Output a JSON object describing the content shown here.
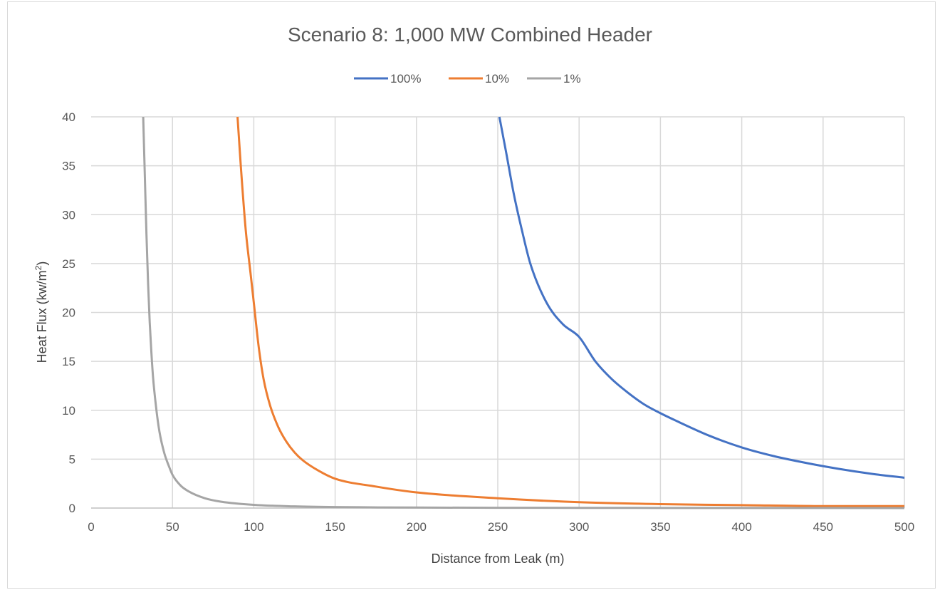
{
  "chart_data": {
    "type": "line",
    "title": "Scenario 8: 1,000 MW Combined Header",
    "xlabel": "Distance from Leak (m)",
    "ylabel": "Heat Flux (kw/m",
    "ylabel_sup": "2",
    "ylabel_end": ")",
    "xlim": [
      0,
      500
    ],
    "ylim": [
      0,
      40
    ],
    "x_ticks": [
      "0",
      "50",
      "100",
      "150",
      "200",
      "250",
      "300",
      "350",
      "400",
      "450",
      "500"
    ],
    "y_ticks": [
      "0",
      "5",
      "10",
      "15",
      "20",
      "25",
      "30",
      "35",
      "40"
    ],
    "grid": true,
    "legend_position": "top",
    "series": [
      {
        "name": "100%",
        "color": "#4472c4",
        "x": [
          251,
          255,
          260,
          265,
          270,
          280,
          290,
          300,
          310,
          320,
          330,
          340,
          350,
          360,
          380,
          400,
          420,
          440,
          460,
          480,
          500
        ],
        "y": [
          40,
          36.5,
          32,
          28.3,
          25,
          21,
          18.8,
          17.5,
          15,
          13.2,
          11.8,
          10.6,
          9.7,
          8.9,
          7.4,
          6.2,
          5.3,
          4.6,
          4.0,
          3.5,
          3.1
        ]
      },
      {
        "name": "10%",
        "color": "#ed7d31",
        "x": [
          90,
          92,
          95,
          98,
          100,
          103,
          106,
          110,
          115,
          120,
          125,
          130,
          140,
          150,
          175,
          200,
          250,
          300,
          350,
          400,
          450,
          500
        ],
        "y": [
          40,
          35,
          28.5,
          24,
          21,
          16.5,
          13.2,
          10.5,
          8.3,
          6.8,
          5.7,
          4.9,
          3.8,
          3.0,
          2.2,
          1.6,
          1.0,
          0.6,
          0.4,
          0.3,
          0.2,
          0.2
        ]
      },
      {
        "name": "1%",
        "color": "#a5a5a5",
        "x": [
          32,
          33,
          34,
          35,
          36,
          37,
          38,
          40,
          42,
          45,
          48,
          50,
          55,
          60,
          70,
          80,
          100,
          125,
          150,
          200,
          300,
          400,
          500
        ],
        "y": [
          40,
          34,
          28,
          23,
          19,
          16,
          13.5,
          10.2,
          7.8,
          5.6,
          4.2,
          3.4,
          2.3,
          1.7,
          1.0,
          0.65,
          0.33,
          0.17,
          0.1,
          0.05,
          0.02,
          0.01,
          0
        ]
      }
    ]
  }
}
